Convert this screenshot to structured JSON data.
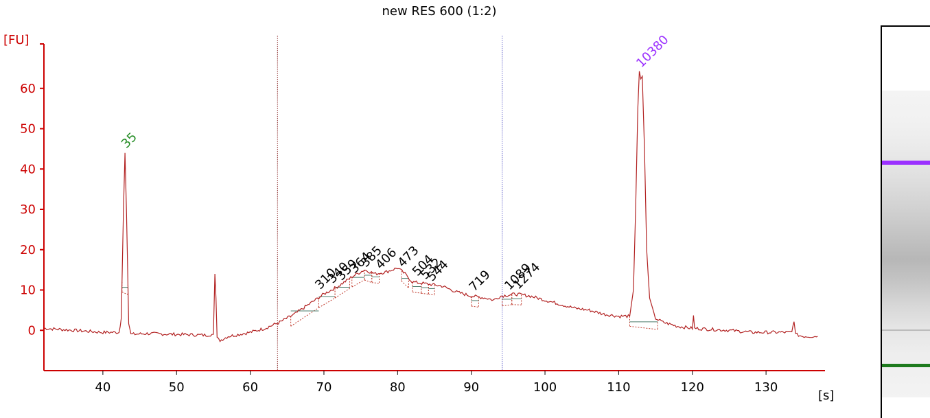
{
  "chart_data": {
    "type": "line",
    "title": "new RES 600 (1:2)",
    "xlabel": "[s]",
    "ylabel": "[FU]",
    "xlim": [
      32,
      138
    ],
    "ylim": [
      -10,
      70
    ],
    "x_ticks": [
      40,
      50,
      60,
      70,
      80,
      90,
      100,
      110,
      120,
      130
    ],
    "y_ticks": [
      0,
      10,
      20,
      30,
      40,
      50,
      60
    ],
    "trace_color": "#b22222",
    "axis_color": "#cc0000",
    "series": [
      {
        "values": [
          [
            32,
            0.5
          ],
          [
            36,
            0.0
          ],
          [
            40,
            -0.5
          ],
          [
            42.2,
            -0.5
          ],
          [
            42.5,
            3
          ],
          [
            42.8,
            30
          ],
          [
            43.0,
            44
          ],
          [
            43.2,
            30
          ],
          [
            43.5,
            2
          ],
          [
            43.8,
            -1
          ],
          [
            46,
            -0.8
          ],
          [
            50,
            -1
          ],
          [
            54,
            -1.2
          ],
          [
            55.0,
            -1
          ],
          [
            55.2,
            14
          ],
          [
            55.35,
            8
          ],
          [
            55.5,
            -2
          ],
          [
            55.9,
            -2.5
          ],
          [
            57,
            -1.5
          ],
          [
            60,
            -0.5
          ],
          [
            62,
            0.5
          ],
          [
            64,
            2
          ],
          [
            66,
            4
          ],
          [
            68,
            6.5
          ],
          [
            70,
            9
          ],
          [
            72,
            11
          ],
          [
            74,
            13.5
          ],
          [
            75.5,
            15
          ],
          [
            77,
            14
          ],
          [
            78.5,
            14.5
          ],
          [
            80,
            15.5
          ],
          [
            81,
            14
          ],
          [
            82,
            12
          ],
          [
            84,
            11.5
          ],
          [
            86,
            11
          ],
          [
            88,
            9.5
          ],
          [
            90,
            8.5
          ],
          [
            92,
            8
          ],
          [
            93,
            7.5
          ],
          [
            94,
            8.5
          ],
          [
            96,
            9
          ],
          [
            98,
            8.5
          ],
          [
            100,
            7.5
          ],
          [
            102,
            6.5
          ],
          [
            104,
            5.5
          ],
          [
            106,
            5
          ],
          [
            108,
            4
          ],
          [
            110,
            3.5
          ],
          [
            111.5,
            3.5
          ],
          [
            112,
            10
          ],
          [
            112.3,
            30
          ],
          [
            112.6,
            55
          ],
          [
            112.8,
            64
          ],
          [
            113.0,
            62
          ],
          [
            113.2,
            63
          ],
          [
            113.5,
            45
          ],
          [
            113.8,
            20
          ],
          [
            114.2,
            8
          ],
          [
            115,
            3
          ],
          [
            116,
            2
          ],
          [
            118,
            1
          ],
          [
            120,
            0.5
          ],
          [
            120.15,
            3.5
          ],
          [
            120.3,
            0.5
          ],
          [
            122,
            0.3
          ],
          [
            125,
            0
          ],
          [
            128,
            -0.5
          ],
          [
            131,
            -0.5
          ],
          [
            133.5,
            -0.5
          ],
          [
            133.8,
            2.5
          ],
          [
            134.0,
            -1
          ],
          [
            135,
            -1.5
          ],
          [
            137,
            -1.5
          ]
        ]
      }
    ],
    "marker_lines": [
      {
        "x": 63.7,
        "color": "#8b2a2a"
      },
      {
        "x": 94.2,
        "color": "#6666cc"
      }
    ],
    "peak_labels": [
      {
        "x": 43.0,
        "y": 44,
        "text": "35",
        "color": "#228b22"
      },
      {
        "x": 112.9,
        "y": 64,
        "text": "10380",
        "color": "#9b30ff"
      },
      {
        "x": 69.3,
        "y": 9,
        "text": "310",
        "color": "#000000"
      },
      {
        "x": 71.0,
        "y": 10.5,
        "text": "340",
        "color": "#000000"
      },
      {
        "x": 72.2,
        "y": 11.2,
        "text": "359",
        "color": "#000000"
      },
      {
        "x": 74.0,
        "y": 13,
        "text": "364",
        "color": "#000000"
      },
      {
        "x": 75.5,
        "y": 14.5,
        "text": "385",
        "color": "#000000"
      },
      {
        "x": 77.5,
        "y": 14,
        "text": "406",
        "color": "#000000"
      },
      {
        "x": 80.5,
        "y": 14.5,
        "text": "473",
        "color": "#000000"
      },
      {
        "x": 82.5,
        "y": 12.3,
        "text": "504",
        "color": "#000000"
      },
      {
        "x": 83.6,
        "y": 11.5,
        "text": "532",
        "color": "#000000"
      },
      {
        "x": 84.5,
        "y": 11,
        "text": "544",
        "color": "#000000"
      },
      {
        "x": 90.2,
        "y": 8.5,
        "text": "719",
        "color": "#000000"
      },
      {
        "x": 95.0,
        "y": 8.8,
        "text": "1089",
        "color": "#000000"
      },
      {
        "x": 96.2,
        "y": 9,
        "text": "1274",
        "color": "#000000"
      }
    ],
    "peak_regions": [
      [
        42.6,
        43.4
      ],
      [
        65.5,
        69.3
      ],
      [
        69.3,
        71.5
      ],
      [
        71.5,
        73.5
      ],
      [
        73.8,
        75.5
      ],
      [
        75.5,
        76.5
      ],
      [
        76.5,
        77.5
      ],
      [
        80.5,
        81.5
      ],
      [
        82.0,
        83.2
      ],
      [
        83.2,
        84.2
      ],
      [
        84.2,
        85.0
      ],
      [
        90.0,
        91.0
      ],
      [
        94.2,
        95.5
      ],
      [
        95.5,
        96.8
      ],
      [
        111.5,
        115.3
      ]
    ]
  },
  "gel": {
    "upper_marker_color": "#9b30ff",
    "lower_marker_color": "#1e7b1e",
    "faint_band_color": "#bbbbbb"
  }
}
